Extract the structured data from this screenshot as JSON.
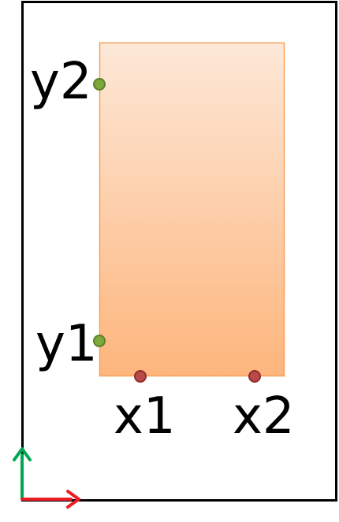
{
  "labels": {
    "y2": "y2",
    "y1": "y1",
    "x1": "x1",
    "x2": "x2"
  },
  "colors": {
    "frame": "#000000",
    "rect_top": "#FDE8D8",
    "rect_bottom": "#FDB57C",
    "rect_stroke": "#F6A15C",
    "y_marker_fill": "#7FA83A",
    "y_marker_stroke": "#5F7F2A",
    "x_marker_fill": "#B94A48",
    "x_marker_stroke": "#8E2E2B",
    "axis_y": "#00A651",
    "axis_x": "#ED1C24"
  }
}
